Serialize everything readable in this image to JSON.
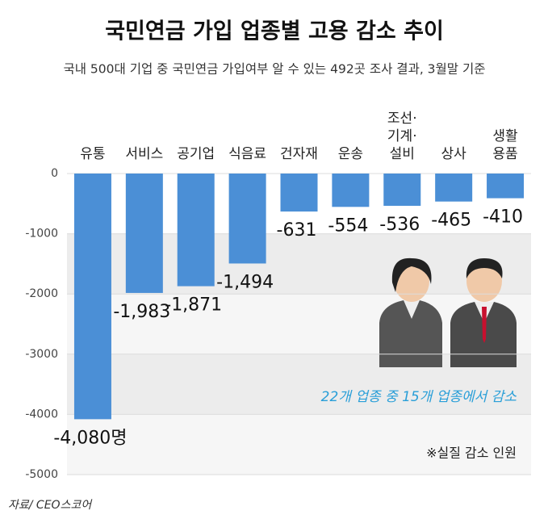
{
  "chart_data": {
    "type": "bar",
    "title": "국민연금 가입 업종별 고용 감소 추이",
    "subtitle": "국내 500대 기업 중 국민연금 가입여부 알 수 있는 492곳 조사 결과, 3월말 기준",
    "categories": [
      "유통",
      "서비스",
      "공기업",
      "식음료",
      "건자재",
      "운송",
      "조선·\n기계·\n설비",
      "상사",
      "생활\n용품"
    ],
    "values": [
      -4080,
      -1983,
      -1871,
      -1494,
      -631,
      -554,
      -536,
      -465,
      -410
    ],
    "value_labels": [
      "-4,080명",
      "-1,983",
      "-1,871",
      "-1,494",
      "-631",
      "-554",
      "-536",
      "-465",
      "-410"
    ],
    "color": "#4b8fd6",
    "ylim": [
      -5000,
      0
    ],
    "yticks": [
      0,
      -1000,
      -2000,
      -3000,
      -4000,
      -5000
    ],
    "grid": true,
    "annotations": [
      "22개 업종 중 15개 업종에서 감소",
      "※실질 감소 인원"
    ],
    "source": "자료/ CEO스코어"
  }
}
